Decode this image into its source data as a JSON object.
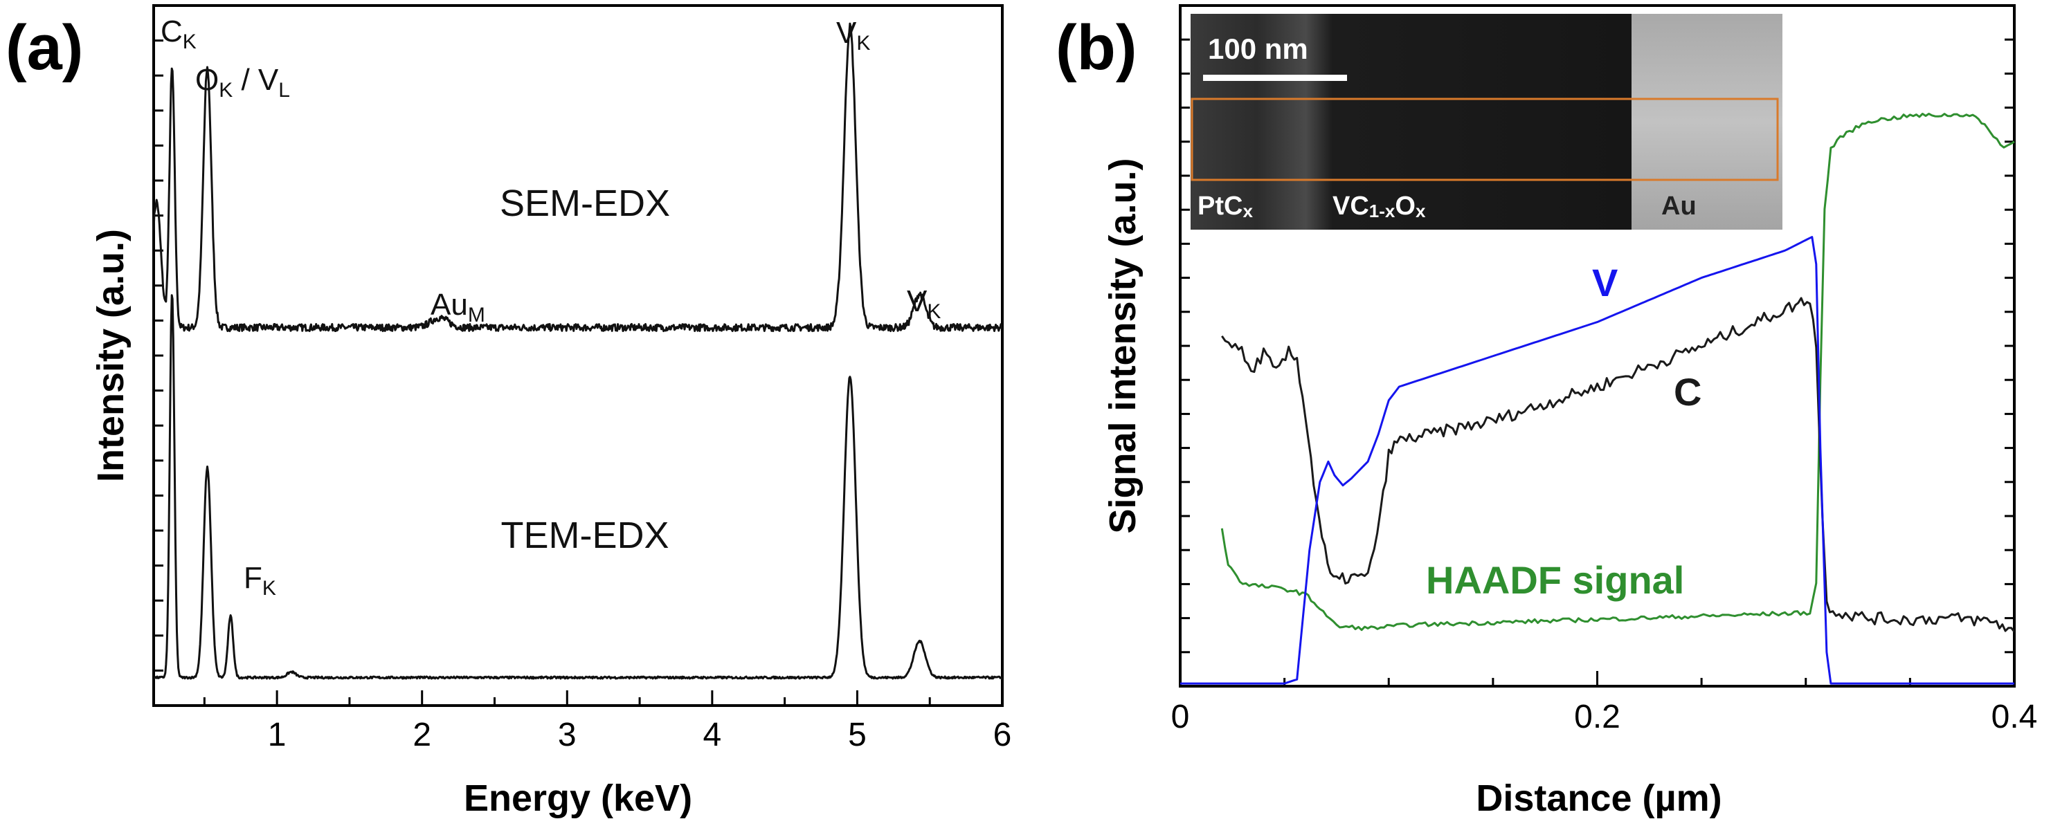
{
  "chart_data": [
    {
      "panel_label": "(a)",
      "type": "line",
      "xlabel": "Energy (keV)",
      "ylabel": "Intensity (a.u.)",
      "xlim": [
        0.15,
        6
      ],
      "xticks": [
        "1",
        "2",
        "3",
        "4",
        "5",
        "6"
      ],
      "ylim": [
        0,
        1
      ],
      "grid": false,
      "spectrum_labels": [
        "SEM-EDX",
        "TEM-EDX"
      ],
      "peak_labels": [
        {
          "main": "C",
          "sub": "K"
        },
        {
          "main": "O",
          "sub": "K",
          "main2": " / V",
          "sub2": "L"
        },
        {
          "main": "V",
          "sub": "K"
        },
        {
          "main": "Au",
          "sub": "M"
        },
        {
          "main": "V",
          "sub": "K"
        },
        {
          "main": "F",
          "sub": "K"
        }
      ],
      "series": [
        {
          "baseline": 0.54,
          "noise": 0.005,
          "peaks": [
            [
              0.17,
              0.18,
              0.03
            ],
            [
              0.277,
              0.37,
              0.018
            ],
            [
              0.52,
              0.37,
              0.028
            ],
            [
              2.12,
              0.014,
              0.06
            ],
            [
              4.95,
              0.43,
              0.04
            ],
            [
              5.43,
              0.048,
              0.04
            ]
          ]
        },
        {
          "baseline": 0.04,
          "noise": 0.0015,
          "peaks": [
            [
              0.277,
              0.55,
              0.016
            ],
            [
              0.52,
              0.3,
              0.026
            ],
            [
              0.68,
              0.088,
              0.018
            ],
            [
              1.1,
              0.008,
              0.03
            ],
            [
              4.95,
              0.43,
              0.04
            ],
            [
              5.43,
              0.052,
              0.04
            ]
          ]
        }
      ]
    },
    {
      "panel_label": "(b)",
      "type": "line",
      "xlabel": "Distance  (µm)",
      "ylabel": "Signal intensity (a.u.)",
      "xlim": [
        0,
        0.4
      ],
      "xticks": [
        "0",
        "0.2",
        "0.4"
      ],
      "ylim": [
        0,
        1
      ],
      "grid": false,
      "series": [
        {
          "name": "V",
          "color": "#1515ee",
          "points": [
            [
              0.0,
              0.004
            ],
            [
              0.05,
              0.004
            ],
            [
              0.056,
              0.01
            ],
            [
              0.062,
              0.2
            ],
            [
              0.067,
              0.3
            ],
            [
              0.071,
              0.33
            ],
            [
              0.074,
              0.31
            ],
            [
              0.078,
              0.295
            ],
            [
              0.082,
              0.305
            ],
            [
              0.09,
              0.33
            ],
            [
              0.095,
              0.37
            ],
            [
              0.1,
              0.42
            ],
            [
              0.105,
              0.44
            ],
            [
              0.2,
              0.535
            ],
            [
              0.25,
              0.6
            ],
            [
              0.29,
              0.64
            ],
            [
              0.303,
              0.66
            ],
            [
              0.305,
              0.62
            ],
            [
              0.307,
              0.35
            ],
            [
              0.31,
              0.05
            ],
            [
              0.312,
              0.004
            ],
            [
              0.4,
              0.004
            ]
          ]
        },
        {
          "name": "C",
          "color": "#1a1a1a",
          "points": [
            [
              0.02,
              0.51
            ],
            [
              0.028,
              0.5
            ],
            [
              0.034,
              0.46
            ],
            [
              0.04,
              0.49
            ],
            [
              0.046,
              0.46
            ],
            [
              0.052,
              0.49
            ],
            [
              0.056,
              0.48
            ],
            [
              0.06,
              0.4
            ],
            [
              0.064,
              0.3
            ],
            [
              0.068,
              0.22
            ],
            [
              0.072,
              0.16
            ],
            [
              0.075,
              0.155
            ],
            [
              0.082,
              0.16
            ],
            [
              0.09,
              0.16
            ],
            [
              0.096,
              0.25
            ],
            [
              0.1,
              0.34
            ],
            [
              0.104,
              0.36
            ],
            [
              0.15,
              0.39
            ],
            [
              0.2,
              0.44
            ],
            [
              0.25,
              0.5
            ],
            [
              0.295,
              0.56
            ],
            [
              0.302,
              0.57
            ],
            [
              0.305,
              0.5
            ],
            [
              0.308,
              0.25
            ],
            [
              0.31,
              0.12
            ],
            [
              0.316,
              0.108
            ],
            [
              0.33,
              0.1
            ],
            [
              0.35,
              0.098
            ],
            [
              0.37,
              0.1
            ],
            [
              0.39,
              0.095
            ],
            [
              0.4,
              0.08
            ]
          ],
          "noise": 0.009
        },
        {
          "name": "HAADF signal",
          "color": "#2f8f2f",
          "points": [
            [
              0.02,
              0.23
            ],
            [
              0.023,
              0.18
            ],
            [
              0.03,
              0.15
            ],
            [
              0.05,
              0.143
            ],
            [
              0.06,
              0.135
            ],
            [
              0.067,
              0.115
            ],
            [
              0.075,
              0.088
            ],
            [
              0.09,
              0.085
            ],
            [
              0.11,
              0.09
            ],
            [
              0.2,
              0.098
            ],
            [
              0.302,
              0.108
            ],
            [
              0.305,
              0.15
            ],
            [
              0.307,
              0.45
            ],
            [
              0.309,
              0.7
            ],
            [
              0.312,
              0.79
            ],
            [
              0.318,
              0.81
            ],
            [
              0.33,
              0.83
            ],
            [
              0.35,
              0.838
            ],
            [
              0.38,
              0.84
            ],
            [
              0.39,
              0.81
            ],
            [
              0.395,
              0.79
            ],
            [
              0.4,
              0.8
            ]
          ],
          "noise": 0.003
        }
      ],
      "inset": {
        "scale_bar": "100 nm",
        "regions": [
          {
            "label": "PtCx",
            "main": "PtC",
            "sub": "x"
          },
          {
            "label": "VC1-xOx",
            "main": "VC",
            "sub": "1-x",
            "main2": "O",
            "sub2": "x"
          },
          {
            "label": "Au",
            "main": "Au"
          }
        ]
      }
    }
  ]
}
